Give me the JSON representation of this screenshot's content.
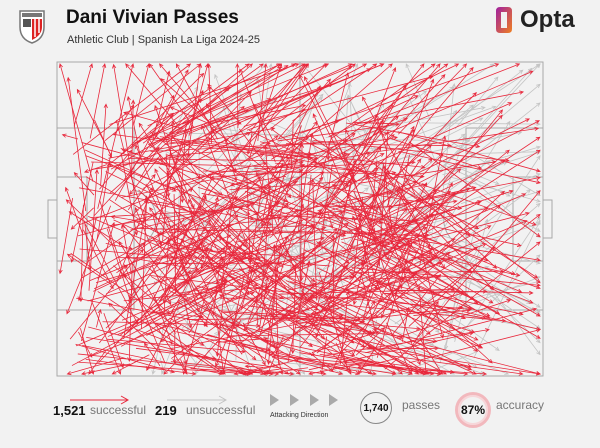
{
  "header": {
    "title": "Dani Vivian Passes",
    "subtitle": "Athletic Club | Spanish La Liga 2024-25",
    "brand": "Opta",
    "crest": "athletic-club-crest"
  },
  "colors": {
    "successful": "#e8283c",
    "unsuccessful": "#c4c4c4",
    "pitch_lines": "#a8a8a8",
    "background": "#f2f2f2"
  },
  "legend": {
    "successful_count": "1,521",
    "successful_label": "successful",
    "unsuccessful_count": "219",
    "unsuccessful_label": "unsuccessful",
    "direction_label": "Attacking Direction",
    "passes_count": "1,740",
    "passes_label": "passes",
    "accuracy_value": "87%",
    "accuracy_label": "accuracy"
  },
  "chart_data": {
    "type": "pass-map",
    "successful": 1521,
    "unsuccessful": 219,
    "total": 1740,
    "accuracy_pct": 87,
    "attacking_direction": "left-to-right"
  }
}
